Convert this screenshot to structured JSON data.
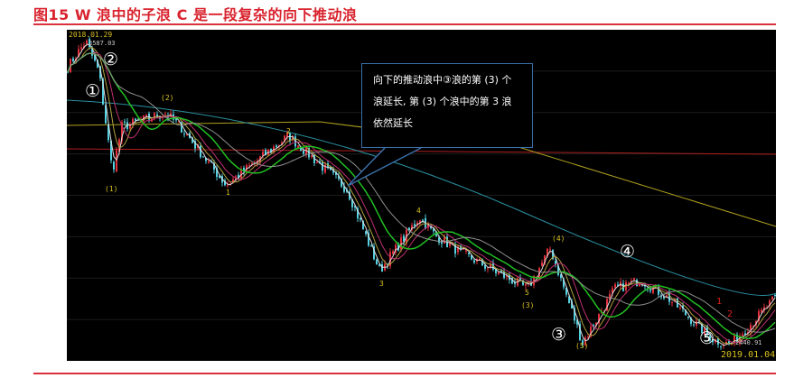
{
  "title": "图15  W 浪中的子浪 C 是一段复杂的向下推动浪",
  "chart_data": {
    "type": "candlestick",
    "title": "图15  W 浪中的子浪 C 是一段复杂的向下推动浪",
    "ylim": [
      2380,
      3630
    ],
    "grid": true,
    "price_path_estimated": [
      {
        "date": "2018-01-19",
        "price": 3485
      },
      {
        "date": "2018-01-29",
        "price": 3587
      },
      {
        "date": "2018-02-05",
        "price": 3468
      },
      {
        "date": "2018-02-12",
        "price": 3094
      },
      {
        "date": "2018-02-17",
        "price": 3264
      },
      {
        "date": "2018-03-12",
        "price": 3315
      },
      {
        "date": "2018-03-20",
        "price": 3264
      },
      {
        "date": "2018-04-13",
        "price": 3043
      },
      {
        "date": "2018-05-16",
        "price": 3230
      },
      {
        "date": "2018-06-16",
        "price": 3026
      },
      {
        "date": "2018-07-03",
        "price": 2720
      },
      {
        "date": "2018-07-24",
        "price": 2924
      },
      {
        "date": "2018-08-01",
        "price": 2856
      },
      {
        "date": "2018-08-15",
        "price": 2788
      },
      {
        "date": "2018-09-19",
        "price": 2652
      },
      {
        "date": "2018-10-01",
        "price": 2805
      },
      {
        "date": "2018-10-18",
        "price": 2448
      },
      {
        "date": "2018-11-04",
        "price": 2652
      },
      {
        "date": "2018-11-18",
        "price": 2686
      },
      {
        "date": "2018-12-02",
        "price": 2618
      },
      {
        "date": "2018-12-26",
        "price": 2460
      },
      {
        "date": "2019-01-04",
        "price": 2441
      },
      {
        "date": "2019-01-28",
        "price": 2618
      }
    ],
    "colors": {
      "up": "#e0303c",
      "down": "#54d0e0"
    },
    "annotations": {
      "start_date": "2018.01.29",
      "high": "3587.03",
      "low": "2440.91",
      "end_date": "2019.01.04",
      "w1": "①",
      "w2": "②",
      "w3": "③",
      "w4": "④",
      "w5": "⑤",
      "s1": "(1)",
      "s2": "(2)",
      "s3": "(3)",
      "s4": "(4)",
      "s5": "(5)",
      "m1": "1",
      "m2": "2",
      "m3": "3",
      "m4": "4",
      "m5": "5",
      "r1": "1",
      "r2": "2",
      "callout": [
        "向下的推动浪中③浪的第 (3) 个",
        "浪延长, 第 (3) 个浪中的第 3 浪",
        "依然延长"
      ]
    }
  }
}
